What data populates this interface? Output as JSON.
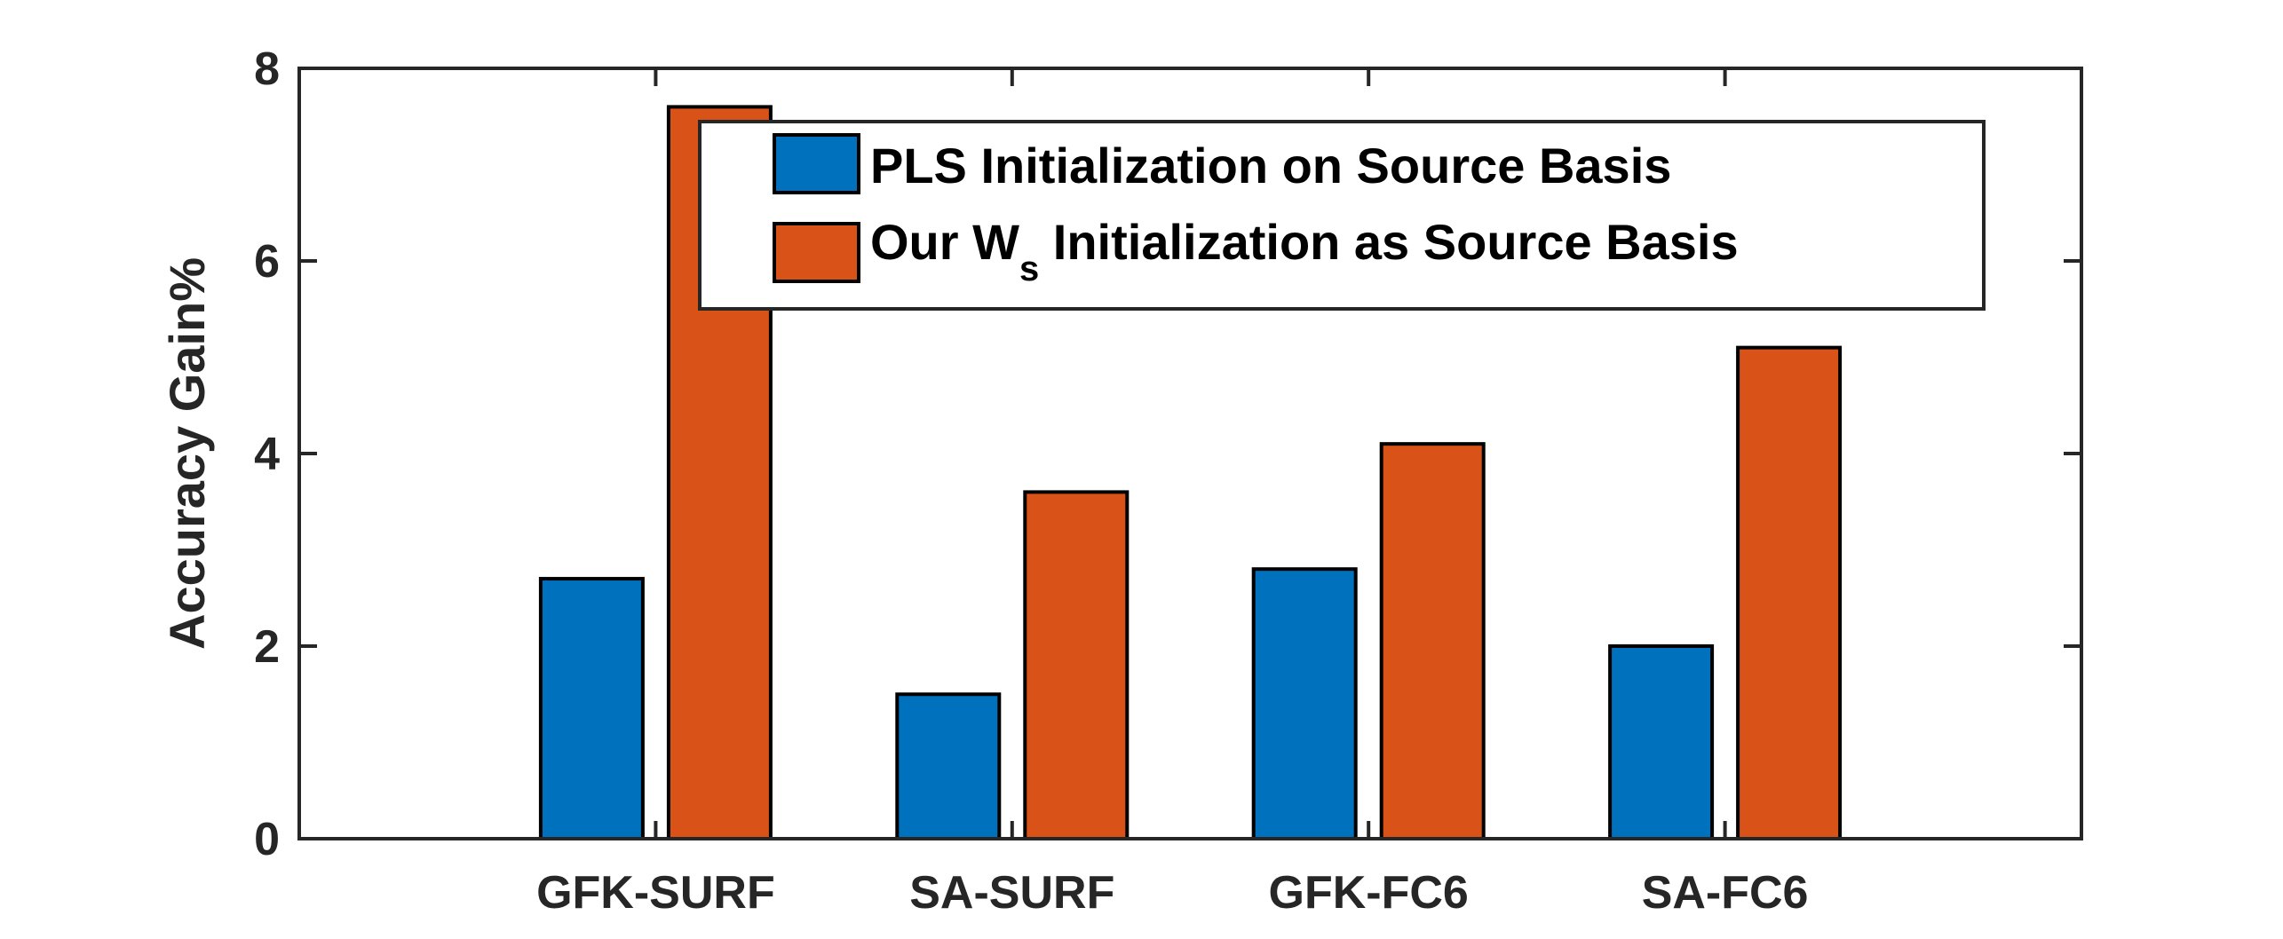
{
  "chart_data": {
    "type": "bar",
    "categories": [
      "GFK-SURF",
      "SA-SURF",
      "GFK-FC6",
      "SA-FC6"
    ],
    "series": [
      {
        "name": "PLS Initialization on Source Basis",
        "values": [
          2.7,
          1.5,
          2.8,
          2.0
        ],
        "color": "#0072BD"
      },
      {
        "name": "Our W_s Initialization as Source Basis",
        "values": [
          7.6,
          3.6,
          4.1,
          5.1
        ],
        "color": "#D95319"
      }
    ],
    "legend": {
      "placement": "top-right",
      "entries": [
        {
          "text": "PLS Initialization on Source Basis"
        },
        {
          "text_before": "Our W",
          "subscript": "s",
          "text_after": " Initialization as Source Basis"
        }
      ]
    },
    "title": "",
    "xlabel": "",
    "ylabel": "Accuracy Gain%",
    "ylim": [
      0,
      8
    ],
    "yticks": [
      0,
      2,
      4,
      6,
      8
    ],
    "grid": false
  }
}
